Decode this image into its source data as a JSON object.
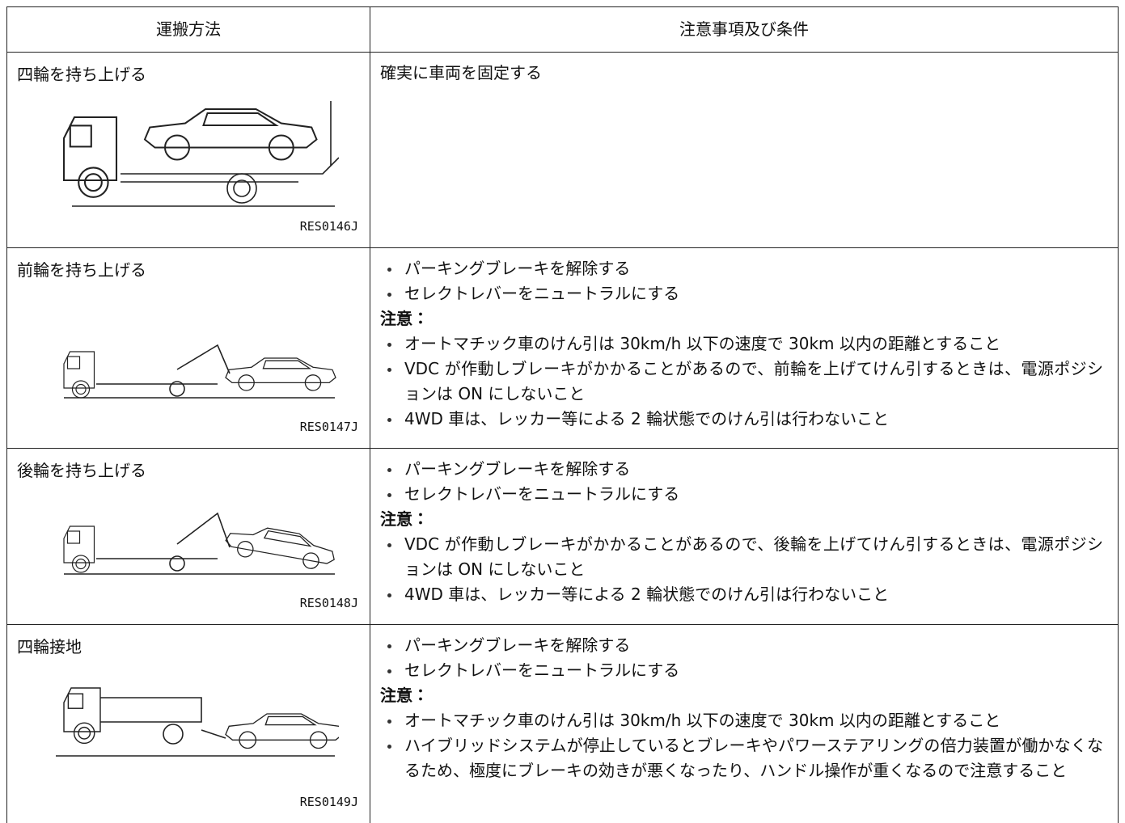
{
  "table": {
    "headers": [
      "運搬方法",
      "注意事項及び条件"
    ],
    "rows": [
      {
        "method": "四輪を持ち上げる",
        "figure": "RES0146J",
        "text": "確実に車両を固定する"
      },
      {
        "method": "前輪を持ち上げる",
        "figure": "RES0147J",
        "items": [
          "パーキングブレーキを解除する",
          "セレクトレバーをニュートラルにする"
        ],
        "caution_label": "注意：",
        "cautions": [
          "オートマチック車のけん引は 30km/h 以下の速度で 30km 以内の距離とすること",
          "VDC が作動しブレーキがかかることがあるので、前輪を上げてけん引するときは、電源ポジションは ON にしないこと",
          "4WD 車は、レッカー等による 2 輪状態でのけん引は行わないこと"
        ]
      },
      {
        "method": "後輪を持ち上げる",
        "figure": "RES0148J",
        "items": [
          "パーキングブレーキを解除する",
          "セレクトレバーをニュートラルにする"
        ],
        "caution_label": "注意：",
        "cautions": [
          "VDC が作動しブレーキがかかることがあるので、後輪を上げてけん引するときは、電源ポジションは ON にしないこと",
          "4WD 車は、レッカー等による 2 輪状態でのけん引は行わないこと"
        ]
      },
      {
        "method": "四輪接地",
        "figure": "RES0149J",
        "items": [
          "パーキングブレーキを解除する",
          "セレクトレバーをニュートラルにする"
        ],
        "caution_label": "注意：",
        "cautions": [
          "オートマチック車のけん引は 30km/h 以下の速度で 30km 以内の距離とすること",
          "ハイブリッドシステムが停止しているとブレーキやパワーステアリングの倍力装置が働かなくなるため、極度にブレーキの効きが悪くなったり、ハンドル操作が重くなるので注意すること"
        ]
      }
    ]
  }
}
